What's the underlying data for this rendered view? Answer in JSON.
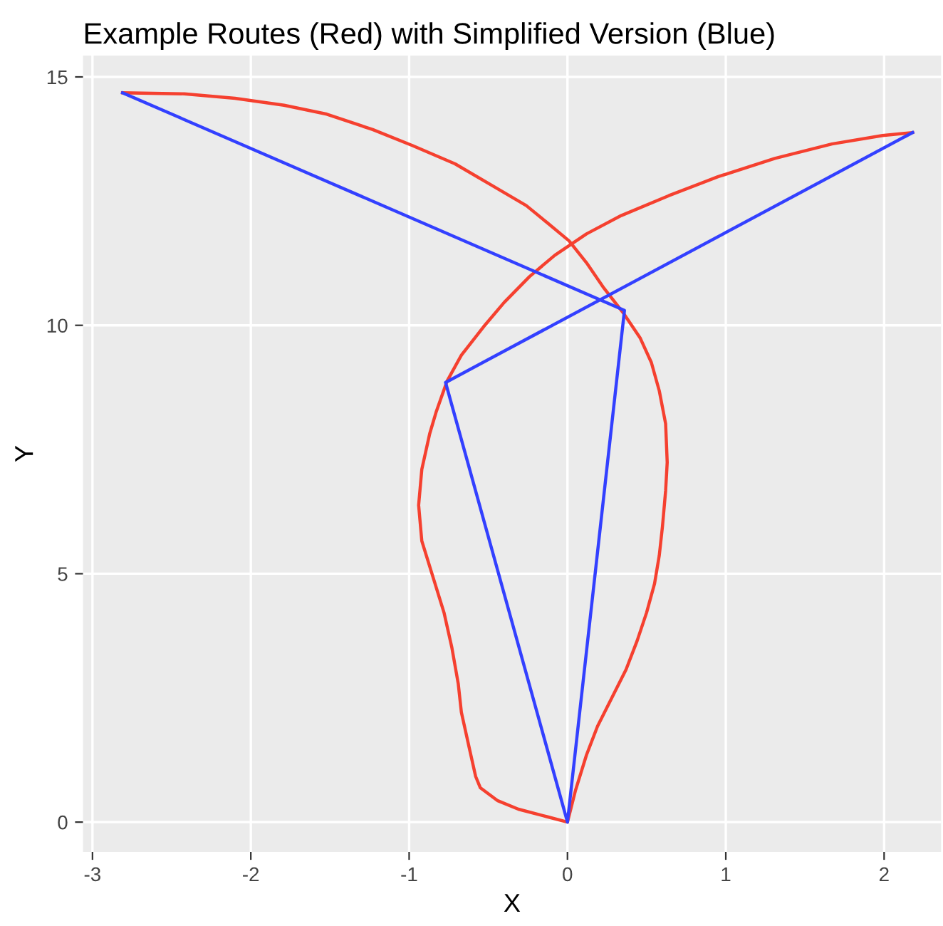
{
  "chart_data": {
    "type": "line",
    "title": "Example Routes (Red) with Simplified Version (Blue)",
    "xlabel": "X",
    "ylabel": "Y",
    "series": [
      {
        "color": "#f5402f",
        "x": [
          -2.81,
          -2.42,
          -2.1,
          -1.79,
          -1.52,
          -1.23,
          -0.98,
          -0.71,
          -0.49,
          -0.26,
          -0.13,
          0.01,
          0.12,
          0.23,
          0.35,
          0.46,
          0.53,
          0.58,
          0.62,
          0.63,
          0.62,
          0.6,
          0.58,
          0.55,
          0.5,
          0.44,
          0.37,
          0.28,
          0.19,
          0.12,
          0.05,
          0,
          -0.13,
          -0.31,
          -0.44,
          -0.55,
          -0.58,
          -0.62,
          -0.67,
          -0.69,
          -0.73,
          -0.78,
          -0.85,
          -0.92,
          -0.94,
          -0.92,
          -0.87,
          -0.83,
          -0.76,
          -0.67,
          -0.53,
          -0.4,
          -0.24,
          -0.08,
          0.12,
          0.34,
          0.64,
          0.95,
          1.31,
          1.67,
          1.99,
          2.18
        ],
        "values": [
          14.68,
          14.66,
          14.57,
          14.43,
          14.25,
          13.94,
          13.62,
          13.25,
          12.84,
          12.41,
          12.07,
          11.7,
          11.26,
          10.75,
          10.26,
          9.74,
          9.25,
          8.68,
          8.02,
          7.24,
          6.67,
          5.95,
          5.37,
          4.8,
          4.22,
          3.65,
          3.07,
          2.5,
          1.93,
          1.35,
          0.63,
          0,
          0.11,
          0.26,
          0.43,
          0.69,
          0.92,
          1.49,
          2.21,
          2.79,
          3.51,
          4.22,
          4.94,
          5.66,
          6.38,
          7.1,
          7.82,
          8.25,
          8.88,
          9.4,
          9.97,
          10.46,
          10.98,
          11.41,
          11.84,
          12.21,
          12.61,
          12.99,
          13.36,
          13.65,
          13.82,
          13.88
        ]
      },
      {
        "color": "#3340ff",
        "x": [
          -2.81,
          0.36,
          0,
          -0.77,
          2.18
        ],
        "values": [
          14.68,
          10.3,
          0,
          8.85,
          13.88
        ]
      }
    ],
    "xlim": [
      -3.06,
      2.36
    ],
    "ylim": [
      -0.6,
      15.43
    ],
    "xticks": [
      -3,
      -2,
      -1,
      0,
      1,
      2
    ],
    "yticks": [
      0,
      5,
      10,
      15
    ],
    "grid": true,
    "line_style": "solid"
  }
}
